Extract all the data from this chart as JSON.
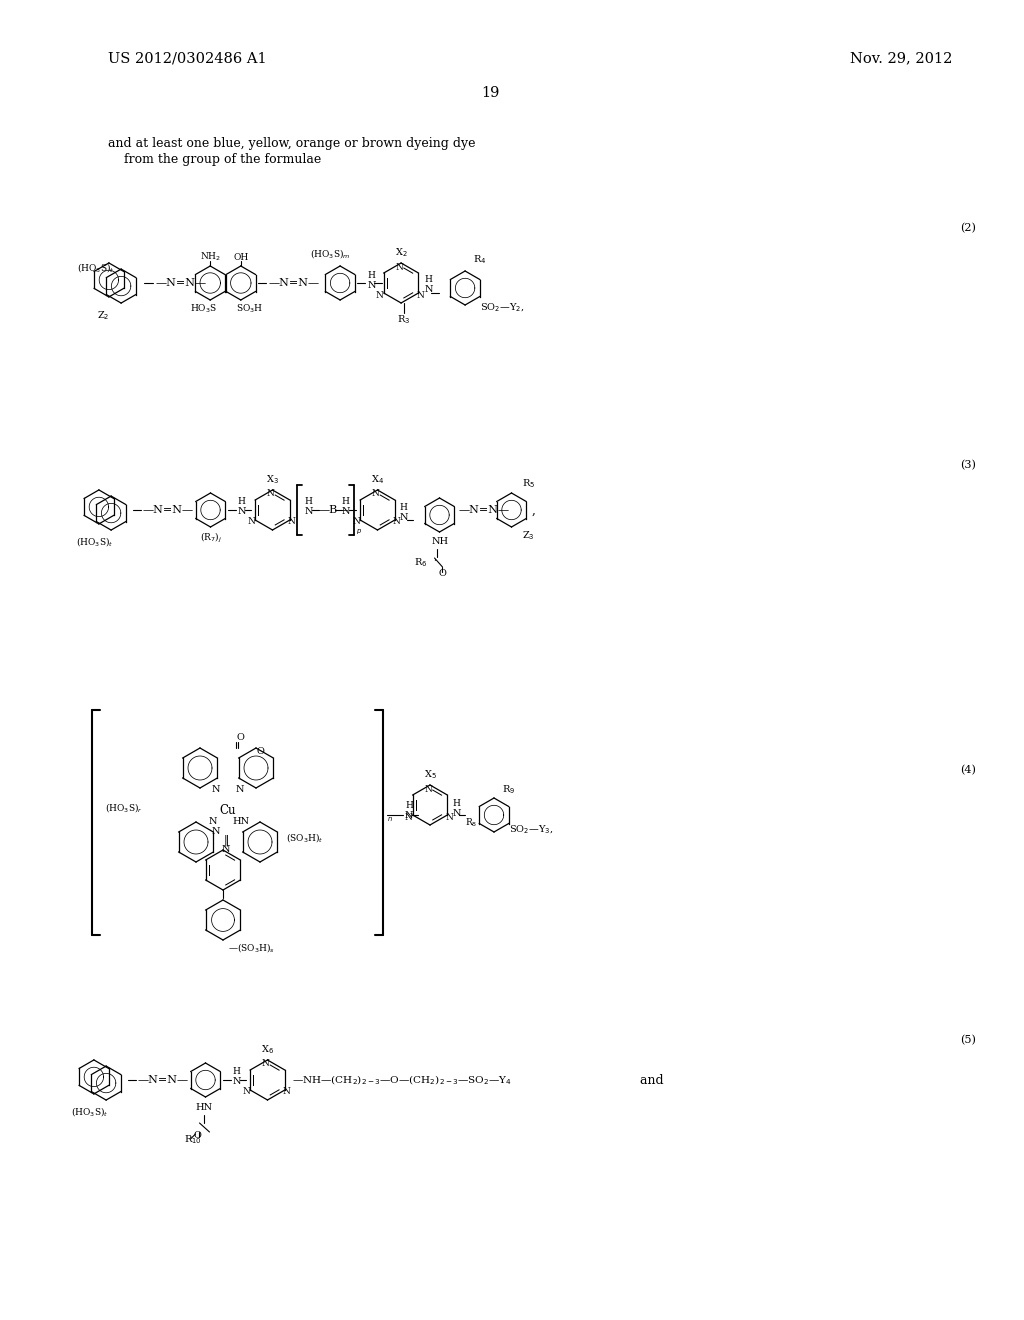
{
  "bg_color": "#ffffff",
  "header_left": "US 2012/0302486 A1",
  "header_right": "Nov. 29, 2012",
  "page_number": "19",
  "intro_line1": "and at least one blue, yellow, orange or brown dyeing dye",
  "intro_line2": "    from the group of the formulae",
  "label2": "(2)",
  "label3": "(3)",
  "label4": "(4)",
  "label5": "(5)"
}
